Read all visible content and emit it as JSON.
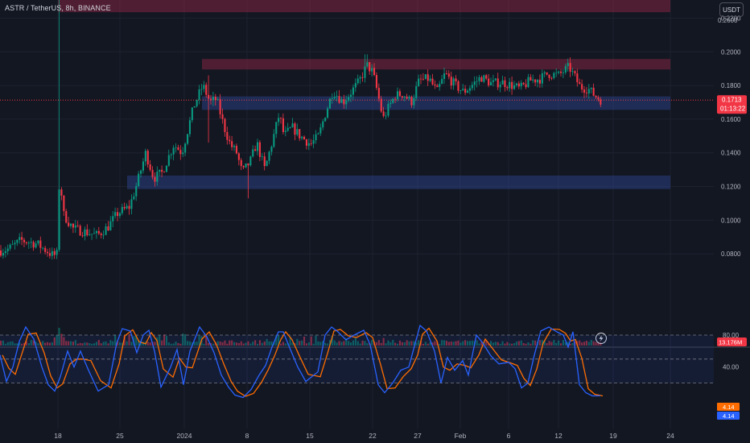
{
  "header": {
    "title": "ASTR / TetherUS, 8h, BINANCE",
    "currency_button": "USDT"
  },
  "price_axis": {
    "labels": [
      "0.2400",
      "0.2200",
      "0.2000",
      "0.1800",
      "0.1600",
      "0.1400",
      "0.1200",
      "0.1000",
      "0.0800"
    ],
    "top_partial_label": "0.2600"
  },
  "price_tag": {
    "value": "0.1713",
    "countdown": "01:13:22",
    "color": "#f23645"
  },
  "volume_tag": {
    "value": "13.176M",
    "color": "#f23645"
  },
  "stoch_axis": {
    "labels": [
      "80.00",
      "40.00"
    ]
  },
  "stoch_tags": {
    "k_value": "4.14",
    "d_value": "4.14",
    "k_color": "#ff6d00",
    "d_color": "#2962ff"
  },
  "colors": {
    "background": "#131722",
    "up": "#089981",
    "down": "#f23645",
    "resistance_zone": "#9c2748",
    "support_zone": "#2a3f82"
  },
  "chart_data": {
    "type": "candlestick",
    "symbol": "ASTR / TetherUS",
    "interval": "8h",
    "exchange": "BINANCE",
    "y_range": [
      0.064,
      0.256
    ],
    "x_labels": [
      "18",
      "25",
      "2024",
      "8",
      "15",
      "22",
      "27",
      "Feb",
      "6",
      "12",
      "19",
      "24"
    ],
    "zones": [
      {
        "kind": "resistance",
        "low": 0.2235,
        "high": 0.232
      },
      {
        "kind": "resistance",
        "low": 0.1895,
        "high": 0.1957
      },
      {
        "kind": "support",
        "low": 0.1655,
        "high": 0.1735
      },
      {
        "kind": "support",
        "low": 0.1185,
        "high": 0.1265
      }
    ],
    "current_price": 0.1713,
    "stochastic": {
      "upper_band": 80,
      "lower_band": 20,
      "k": 4.14,
      "d": 4.14
    }
  }
}
